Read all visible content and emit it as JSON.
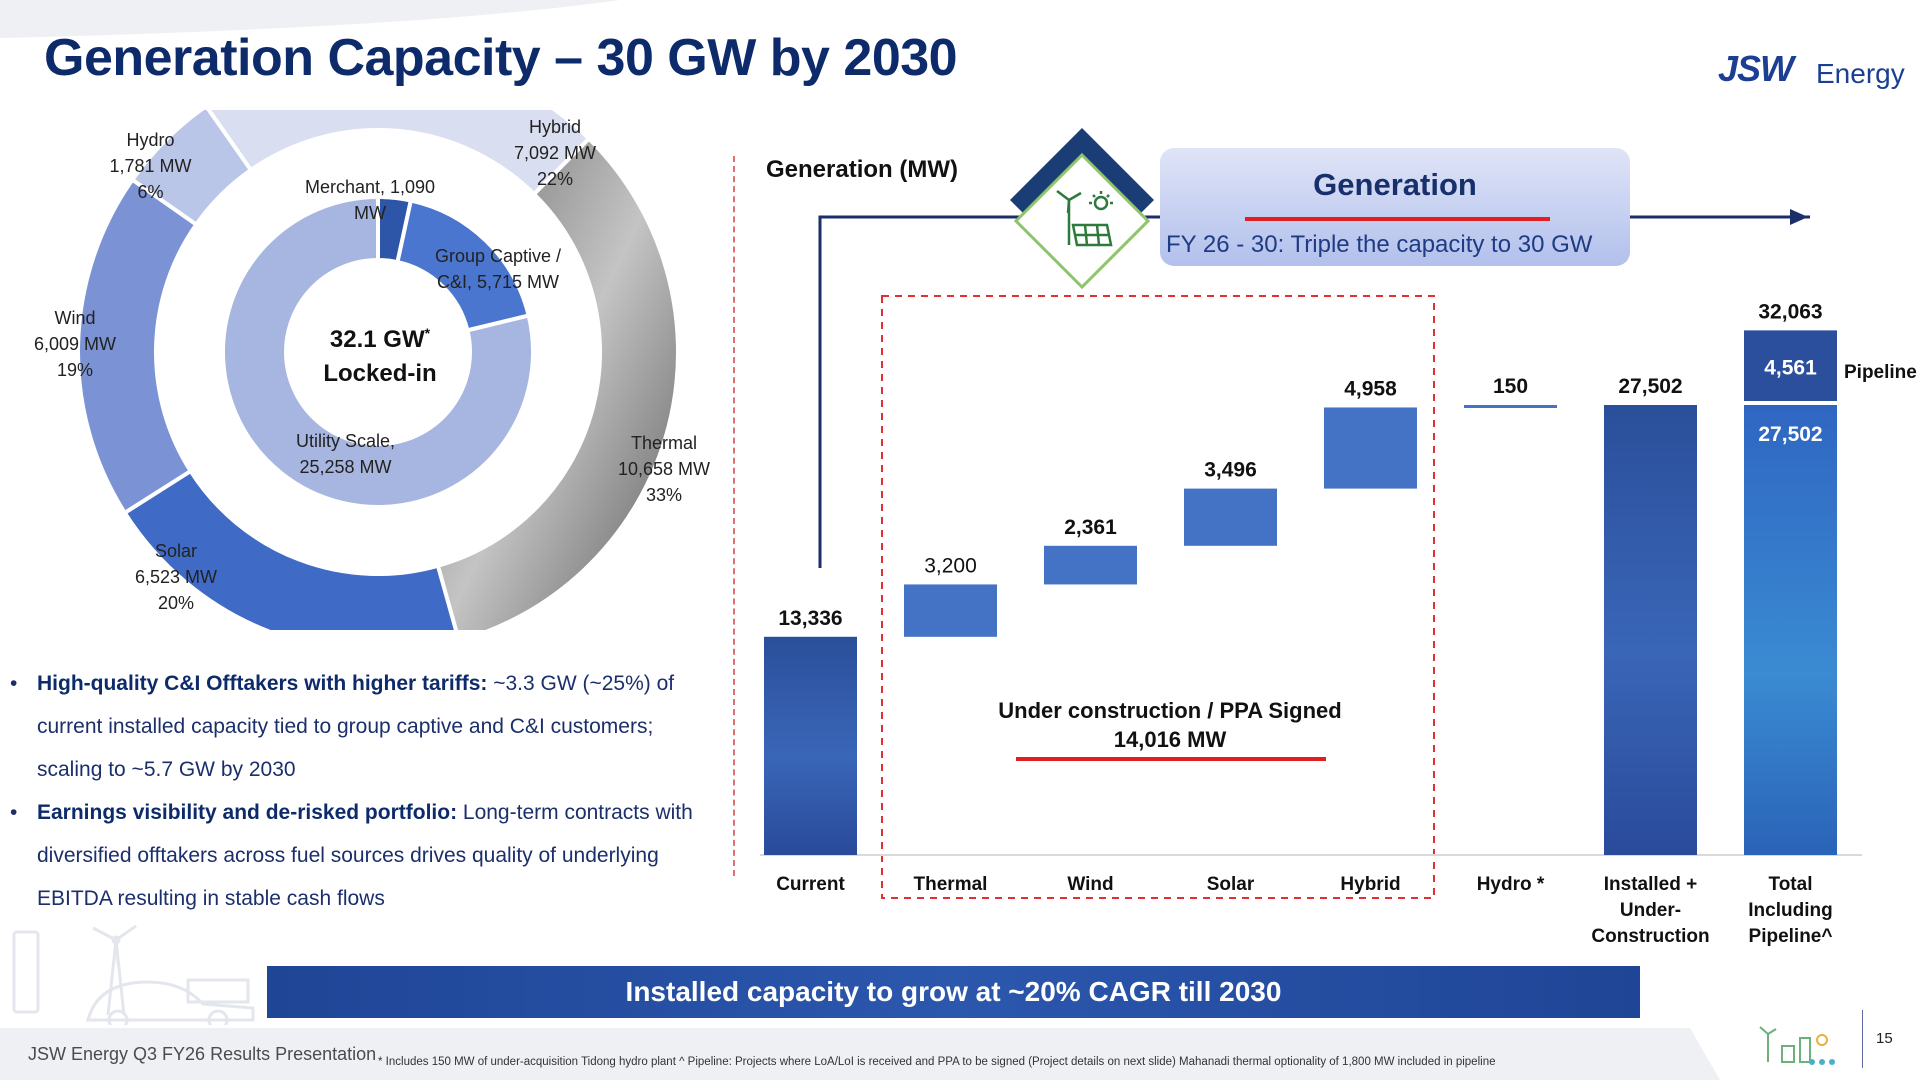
{
  "title": "Generation Capacity – 30 GW by 2030",
  "logo": {
    "mark": "JSW",
    "name": "Energy"
  },
  "donut": {
    "center_line1": "32.1 GW",
    "center_asterisk": "*",
    "center_line2": "Locked-in",
    "outer": [
      {
        "name": "Hybrid",
        "mw": "7,092 MW",
        "pct": "22%",
        "value": 7092,
        "color": "#d9dff0"
      },
      {
        "name": "Thermal",
        "mw": "10,658 MW",
        "pct": "33%",
        "value": 10658,
        "color": "#8d8d8d"
      },
      {
        "name": "Solar",
        "mw": "6,523 MW",
        "pct": "20%",
        "value": 6523,
        "color": "#3f6ac6"
      },
      {
        "name": "Wind",
        "mw": "6,009 MW",
        "pct": "19%",
        "value": 6009,
        "color": "#7b93d4"
      },
      {
        "name": "Hydro",
        "mw": "1,781 MW",
        "pct": "6%",
        "value": 1781,
        "color": "#b9c6e8"
      }
    ],
    "inner": [
      {
        "name": "Merchant, 1,090 MW",
        "label_a": "Merchant, 1,090",
        "label_b": "MW",
        "value": 1090,
        "color": "#2e56a8"
      },
      {
        "name": "Group Captive / C&I, 5,715 MW",
        "label_a": "Group Captive /",
        "label_b": "C&I, 5,715 MW",
        "value": 5715,
        "color": "#4a76cf"
      },
      {
        "name": "Utility Scale, 25,258 MW",
        "label_a": "Utility Scale,",
        "label_b": "25,258 MW",
        "value": 25258,
        "color": "#a7b6e0"
      }
    ]
  },
  "bullets": [
    {
      "bold": "High-quality C&I Offtakers with higher tariffs:",
      "text": " ~3.3 GW (~25%) of current installed capacity tied to group captive and C&I customers; scaling to ~5.7 GW by 2030"
    },
    {
      "bold": "Earnings visibility and de-risked portfolio:",
      "text": " Long-term contracts with diversified offtakers across fuel sources drives quality of underlying EBITDA resulting in stable cash flows"
    }
  ],
  "generation": {
    "axis_label": "Generation (MW)",
    "box_title": "Generation",
    "box_subtitle": "FY 26 - 30: Triple the capacity to 30 GW",
    "bracket_line1": "Under construction / PPA Signed",
    "bracket_line2": "14,016 MW",
    "pipeline_label": "Pipeline"
  },
  "chart_data": {
    "type": "bar",
    "subtype": "waterfall",
    "title": "Generation (MW)",
    "categories": [
      "Current",
      "Thermal",
      "Wind",
      "Solar",
      "Hybrid",
      "Hydro *",
      "Installed + Under-Construction",
      "Total Including Pipeline^"
    ],
    "category_lines": [
      [
        "Current"
      ],
      [
        "Thermal"
      ],
      [
        "Wind"
      ],
      [
        "Solar"
      ],
      [
        "Hybrid"
      ],
      [
        "Hydro *"
      ],
      [
        "Installed +",
        "Under-",
        "Construction"
      ],
      [
        "Total",
        "Including",
        "Pipeline^"
      ]
    ],
    "values": [
      13336,
      3200,
      2361,
      3496,
      4958,
      150,
      27502,
      32063
    ],
    "value_labels": [
      "13,336",
      "3,200",
      "2,361",
      "3,496",
      "4,958",
      "150",
      "27,502",
      "32,063"
    ],
    "kinds": [
      "total",
      "increment",
      "increment",
      "increment",
      "increment",
      "increment",
      "total",
      "stacked"
    ],
    "stack": [
      {
        "name": "Installed + Under-Construction",
        "value": 27502,
        "label": "27,502"
      },
      {
        "name": "Pipeline",
        "value": 4561,
        "label": "4,561"
      }
    ],
    "ylim": [
      0,
      34000
    ],
    "xlabel": "",
    "ylabel": ""
  },
  "banner": "Installed capacity to grow at ~20% CAGR till 2030",
  "footer": {
    "left": "JSW Energy Q3 FY26 Results Presentation",
    "footnote": "* Includes 150 MW of under-acquisition Tidong hydro plant ^ Pipeline: Projects where LoA/LoI is received and PPA to be signed  (Project details on next slide) Mahanadi thermal optionality of 1,800 MW included in pipeline",
    "page": "15"
  },
  "colors": {
    "navy": "#0d2a6b",
    "bar_blue": "#4472c4",
    "dark_bar": "#2a54a3",
    "accent_red": "#e02020"
  }
}
